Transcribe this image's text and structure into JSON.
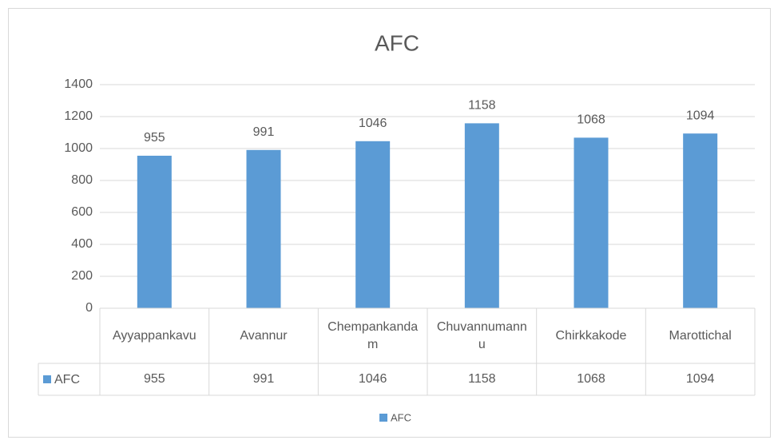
{
  "chart_data": {
    "type": "bar",
    "title": "AFC",
    "categories": [
      "Ayyappankavu",
      "Avannur",
      "Chempankandam",
      "Chuvannumannu",
      "Chirkkakode",
      "Marottichal"
    ],
    "series": [
      {
        "name": "AFC",
        "color": "#5b9bd5",
        "values": [
          955,
          991,
          1046,
          1158,
          1068,
          1094
        ]
      }
    ],
    "ylim": [
      0,
      1400
    ],
    "yticks": [
      0,
      200,
      400,
      600,
      800,
      1000,
      1200,
      1400
    ],
    "grid": true,
    "legend": "bottom",
    "data_table": true
  }
}
